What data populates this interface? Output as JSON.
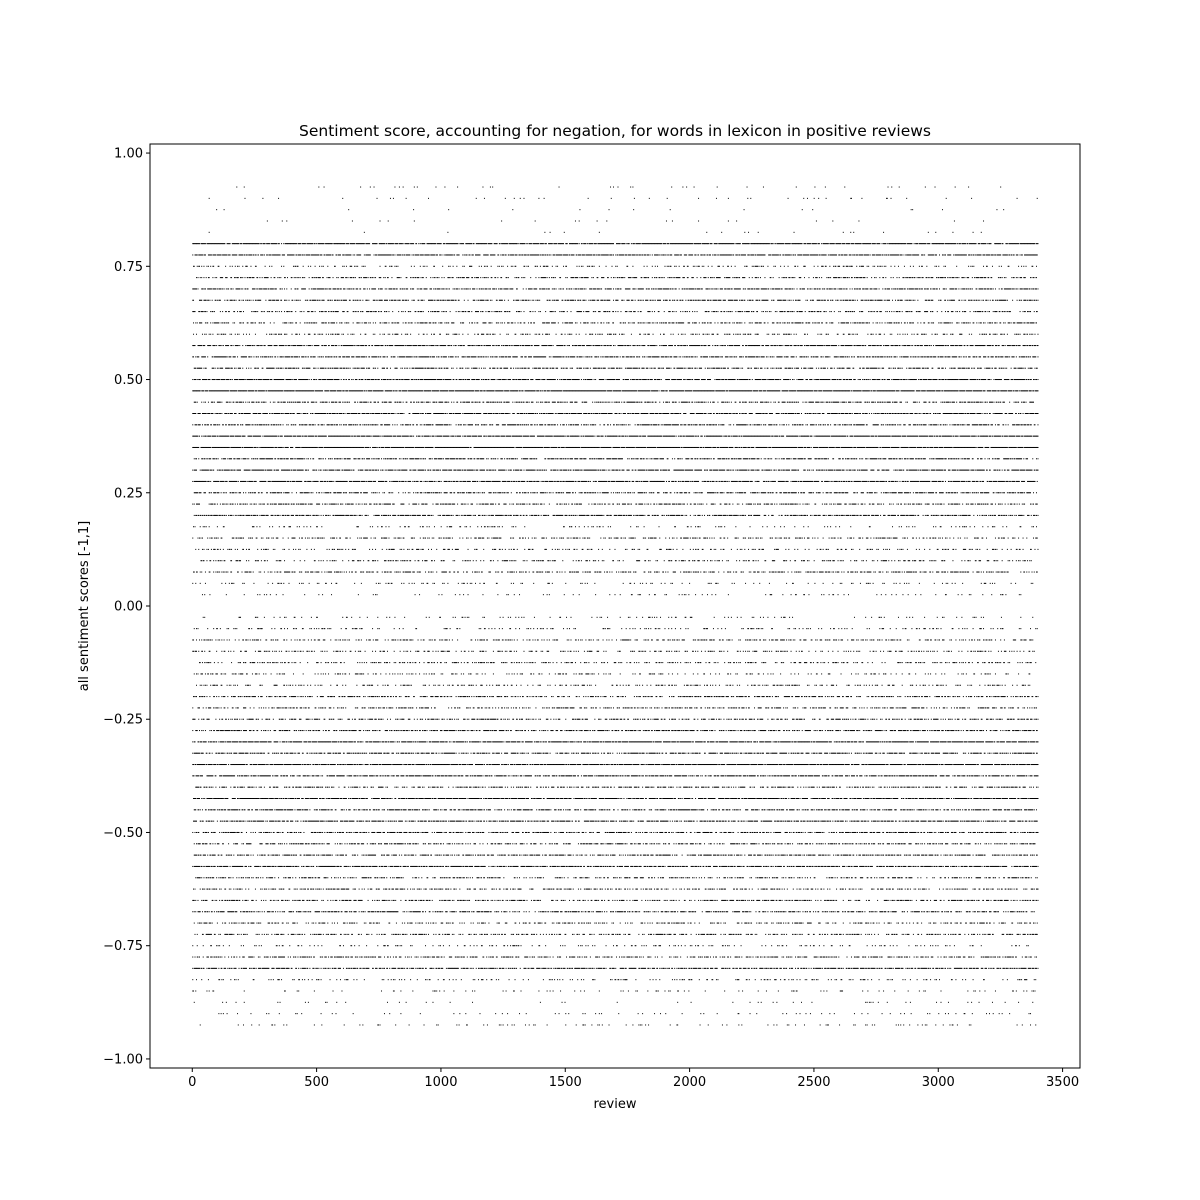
{
  "chart_data": {
    "type": "scatter",
    "title": "Sentiment score, accounting for negation, for words in lexicon in positive reviews",
    "xlabel": "review",
    "ylabel": "all sentiment scores [-1,1]",
    "xlim": [
      -170,
      3570
    ],
    "ylim": [
      -1.02,
      1.02
    ],
    "x_ticks": [
      0,
      500,
      1000,
      1500,
      2000,
      2500,
      3000,
      3500
    ],
    "x_tick_labels": [
      "0",
      "500",
      "1000",
      "1500",
      "2000",
      "2500",
      "3000",
      "3500"
    ],
    "y_ticks": [
      1.0,
      0.75,
      0.5,
      0.25,
      0.0,
      -0.25,
      -0.5,
      -0.75,
      -1.0
    ],
    "y_tick_labels": [
      "1.00",
      "0.75",
      "0.50",
      "0.25",
      "0.00",
      "−0.25",
      "−0.50",
      "−0.75",
      "−1.00"
    ],
    "grid": false,
    "marker_color": "#000000",
    "review_count": 3400,
    "score_levels": [
      {
        "y": 0.925,
        "density": 0.04
      },
      {
        "y": 0.9,
        "density": 0.04
      },
      {
        "y": 0.875,
        "density": 0.015
      },
      {
        "y": 0.85,
        "density": 0.02
      },
      {
        "y": 0.825,
        "density": 0.02
      },
      {
        "y": 0.8,
        "density": 0.85
      },
      {
        "y": 0.775,
        "density": 0.75
      },
      {
        "y": 0.75,
        "density": 0.25
      },
      {
        "y": 0.725,
        "density": 0.45
      },
      {
        "y": 0.7,
        "density": 0.6
      },
      {
        "y": 0.675,
        "density": 0.55
      },
      {
        "y": 0.65,
        "density": 0.4
      },
      {
        "y": 0.625,
        "density": 0.45
      },
      {
        "y": 0.6,
        "density": 0.3
      },
      {
        "y": 0.575,
        "density": 0.7
      },
      {
        "y": 0.55,
        "density": 0.65
      },
      {
        "y": 0.525,
        "density": 0.55
      },
      {
        "y": 0.5,
        "density": 0.75
      },
      {
        "y": 0.475,
        "density": 0.9
      },
      {
        "y": 0.45,
        "density": 0.55
      },
      {
        "y": 0.425,
        "density": 0.7
      },
      {
        "y": 0.4,
        "density": 0.6
      },
      {
        "y": 0.375,
        "density": 0.85
      },
      {
        "y": 0.35,
        "density": 0.9
      },
      {
        "y": 0.325,
        "density": 0.55
      },
      {
        "y": 0.3,
        "density": 0.7
      },
      {
        "y": 0.275,
        "density": 0.75
      },
      {
        "y": 0.25,
        "density": 0.55
      },
      {
        "y": 0.225,
        "density": 0.5
      },
      {
        "y": 0.2,
        "density": 0.6
      },
      {
        "y": 0.175,
        "density": 0.15
      },
      {
        "y": 0.15,
        "density": 0.35
      },
      {
        "y": 0.125,
        "density": 0.25
      },
      {
        "y": 0.1,
        "density": 0.3
      },
      {
        "y": 0.075,
        "density": 0.4
      },
      {
        "y": 0.05,
        "density": 0.15
      },
      {
        "y": 0.025,
        "density": 0.1
      },
      {
        "y": -0.025,
        "density": 0.1
      },
      {
        "y": -0.05,
        "density": 0.2
      },
      {
        "y": -0.075,
        "density": 0.35
      },
      {
        "y": -0.1,
        "density": 0.3
      },
      {
        "y": -0.125,
        "density": 0.3
      },
      {
        "y": -0.15,
        "density": 0.2
      },
      {
        "y": -0.175,
        "density": 0.25
      },
      {
        "y": -0.2,
        "density": 0.45
      },
      {
        "y": -0.225,
        "density": 0.4
      },
      {
        "y": -0.25,
        "density": 0.45
      },
      {
        "y": -0.275,
        "density": 0.55
      },
      {
        "y": -0.3,
        "density": 0.8
      },
      {
        "y": -0.325,
        "density": 0.6
      },
      {
        "y": -0.35,
        "density": 0.85
      },
      {
        "y": -0.375,
        "density": 0.7
      },
      {
        "y": -0.4,
        "density": 0.45
      },
      {
        "y": -0.425,
        "density": 0.75
      },
      {
        "y": -0.45,
        "density": 0.6
      },
      {
        "y": -0.475,
        "density": 0.65
      },
      {
        "y": -0.5,
        "density": 0.55
      },
      {
        "y": -0.525,
        "density": 0.45
      },
      {
        "y": -0.55,
        "density": 0.55
      },
      {
        "y": -0.575,
        "density": 0.7
      },
      {
        "y": -0.6,
        "density": 0.45
      },
      {
        "y": -0.625,
        "density": 0.4
      },
      {
        "y": -0.65,
        "density": 0.45
      },
      {
        "y": -0.675,
        "density": 0.55
      },
      {
        "y": -0.7,
        "density": 0.35
      },
      {
        "y": -0.725,
        "density": 0.4
      },
      {
        "y": -0.75,
        "density": 0.15
      },
      {
        "y": -0.775,
        "density": 0.45
      },
      {
        "y": -0.8,
        "density": 0.6
      },
      {
        "y": -0.825,
        "density": 0.2
      },
      {
        "y": -0.85,
        "density": 0.1
      },
      {
        "y": -0.875,
        "density": 0.05
      },
      {
        "y": -0.9,
        "density": 0.07
      },
      {
        "y": -0.925,
        "density": 0.08
      }
    ]
  }
}
